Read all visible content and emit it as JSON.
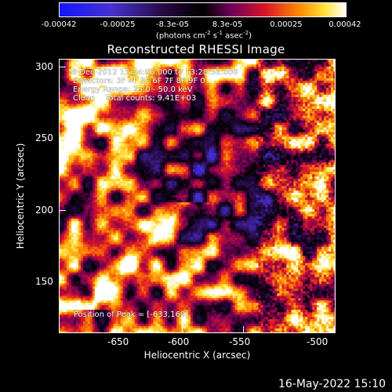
{
  "colorbar": {
    "ticks": [
      "-0.00042",
      "-0.00025",
      "-8.3e-05",
      "8.3e-05",
      "0.00025",
      "0.00042"
    ],
    "units": "(photons cm",
    "units_exp1": "-2",
    "units_mid": " s",
    "units_exp2": "-1",
    "units_end": " asec",
    "units_exp3": "-2",
    "units_close": ")"
  },
  "title": "Reconstructed RHESSI Image",
  "axes": {
    "xlabel": "Heliocentric X (arcsec)",
    "ylabel": "Heliocentric Y (arcsec)",
    "xticks": [
      "-650",
      "-600",
      "-550",
      "-500"
    ],
    "yticks": [
      "300",
      "250",
      "200",
      "150"
    ]
  },
  "annotations": {
    "line1": " 8-Dec-2012 13:24:00.000 to 13:28:56.000",
    "line2": "Detectors: 3F 4F 5F 6F 7F 8F 9F 0",
    "line3": "Energy Range: 25.0 - 50.0 keV",
    "line4": "Clean    Total counts: 9.41E+03",
    "peak": "Position of Peak = [-633,169]"
  },
  "footer": {
    "date": "16-May-2022 15:10"
  }
}
